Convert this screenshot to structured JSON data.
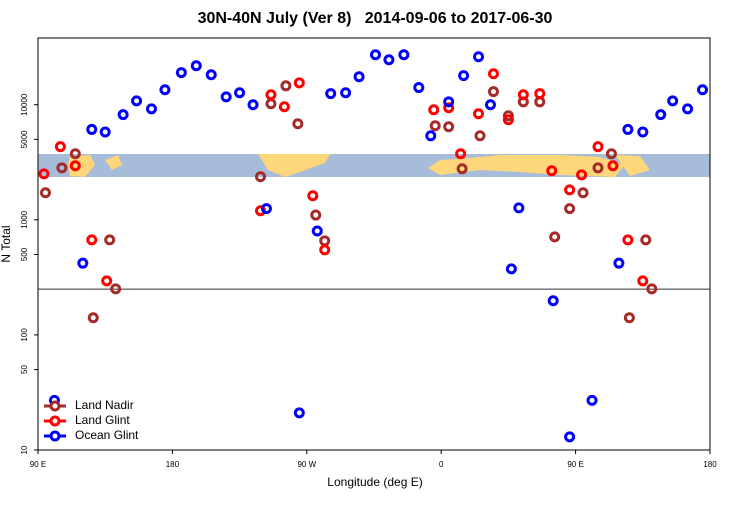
{
  "chart_data": {
    "type": "scatter",
    "title": "30N-40N July (Ver 8)   2014-09-06 to 2017-06-30",
    "x_label": "Longitude (deg E)",
    "y_label": "N Total",
    "xlim": [
      90,
      540
    ],
    "xticks": [
      {
        "value": 90,
        "label": "90 E"
      },
      180,
      {
        "value": 270,
        "label": "90 W"
      },
      {
        "value": 360,
        "label": "0"
      },
      {
        "value": 450,
        "label": "90 E"
      },
      {
        "value": 540,
        "label": "180"
      }
    ],
    "ylim": [
      10,
      38000
    ],
    "log_y": true,
    "yticks": [
      10,
      50,
      100,
      500,
      1000,
      5000,
      10000
    ],
    "hline": 250,
    "legend": "bottomleft",
    "series": [
      {
        "name": "Land Nadir",
        "color": "#a52a2a",
        "x": [
          95,
          106,
          115,
          127,
          138,
          142,
          239,
          246,
          256,
          264,
          276,
          282,
          356,
          365,
          374,
          386,
          395,
          405,
          415,
          426,
          436,
          446,
          455,
          465,
          474,
          486,
          497,
          501
        ],
        "values": [
          1720,
          2830,
          3750,
          141,
          670,
          251,
          2370,
          10200,
          14600,
          6840,
          1100,
          657,
          6570,
          6440,
          2780,
          5370,
          13000,
          8020,
          10600,
          10600,
          711,
          1250,
          1720,
          2830,
          3750,
          141,
          670,
          251
        ]
      },
      {
        "name": "Land Glint",
        "color": "#ff0000",
        "x": [
          94,
          105,
          115,
          126,
          136,
          239,
          246,
          255,
          265,
          274,
          282,
          355,
          365,
          373,
          385,
          395,
          405,
          415,
          426,
          434,
          446,
          454,
          465,
          475,
          485,
          495
        ],
        "values": [
          2510,
          4320,
          2950,
          670,
          295,
          1200,
          12200,
          9610,
          15500,
          1620,
          548,
          9050,
          9420,
          3750,
          8350,
          18600,
          7410,
          12200,
          12500,
          2670,
          1820,
          2460,
          4320,
          2950,
          670,
          295
        ]
      },
      {
        "name": "Ocean Glint",
        "color": "#0000ff",
        "x": [
          101,
          126,
          135,
          120,
          147,
          156,
          166,
          175,
          186,
          196,
          206,
          216,
          225,
          234,
          243,
          265,
          277,
          286,
          296,
          305,
          316,
          325,
          335,
          345,
          353,
          365,
          375,
          385,
          393,
          407,
          412,
          435,
          446,
          461,
          479,
          485,
          495,
          507,
          515,
          525,
          535
        ],
        "values": [
          27,
          6100,
          5800,
          420,
          8200,
          10800,
          9200,
          13500,
          19000,
          21800,
          18200,
          11700,
          12700,
          10000,
          1250,
          21,
          800,
          12500,
          12700,
          17500,
          27200,
          24600,
          27200,
          14100,
          5370,
          10600,
          17900,
          26100,
          10000,
          375,
          1270,
          198,
          13,
          27,
          420,
          6100,
          5800,
          8200,
          10800,
          9200,
          13500
        ]
      }
    ]
  }
}
